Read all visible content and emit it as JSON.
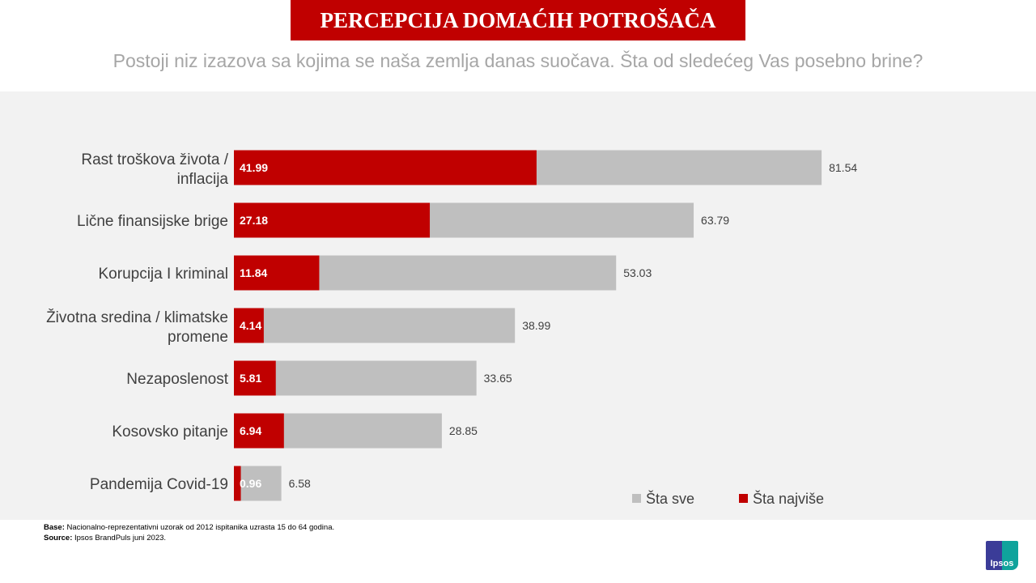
{
  "header": {
    "title": "PERCEPCIJA DOMAĆIH POTROŠAČA",
    "subtitle": "Postoji niz izazova sa kojima se naša zemlja danas suočava.  Šta od sledećeg Vas posebno brine?"
  },
  "chart_data": {
    "type": "bar",
    "orientation": "horizontal",
    "stacked_overlay": true,
    "categories": [
      [
        "Rast troškova života /",
        "inflacija"
      ],
      [
        "Lične finansijske brige"
      ],
      [
        "Korupcija I kriminal"
      ],
      [
        "Životna sredina / klimatske",
        "promene"
      ],
      [
        "Nezaposlenost"
      ],
      [
        "Kosovsko pitanje"
      ],
      [
        "Pandemija Covid-19"
      ]
    ],
    "series": [
      {
        "name": "Šta sve",
        "color": "#bfbfbf",
        "values": [
          81.54,
          63.79,
          53.03,
          38.99,
          33.65,
          28.85,
          6.58
        ]
      },
      {
        "name": "Šta najviše",
        "color": "#c00000",
        "values": [
          41.99,
          27.18,
          11.84,
          4.14,
          5.81,
          6.94,
          0.96
        ]
      }
    ],
    "legend": "bottom-right",
    "xlim": [
      0,
      100
    ]
  },
  "footer": {
    "base_label": "Base:",
    "base_text": " Nacionalno-reprezentativni uzorak od 2012 ispitanika uzrasta 15 do 64 godina.",
    "source_label": "Source:",
    "source_text": " Ipsos BrandPuls juni 2023."
  },
  "logo": {
    "text": "Ipsos"
  }
}
